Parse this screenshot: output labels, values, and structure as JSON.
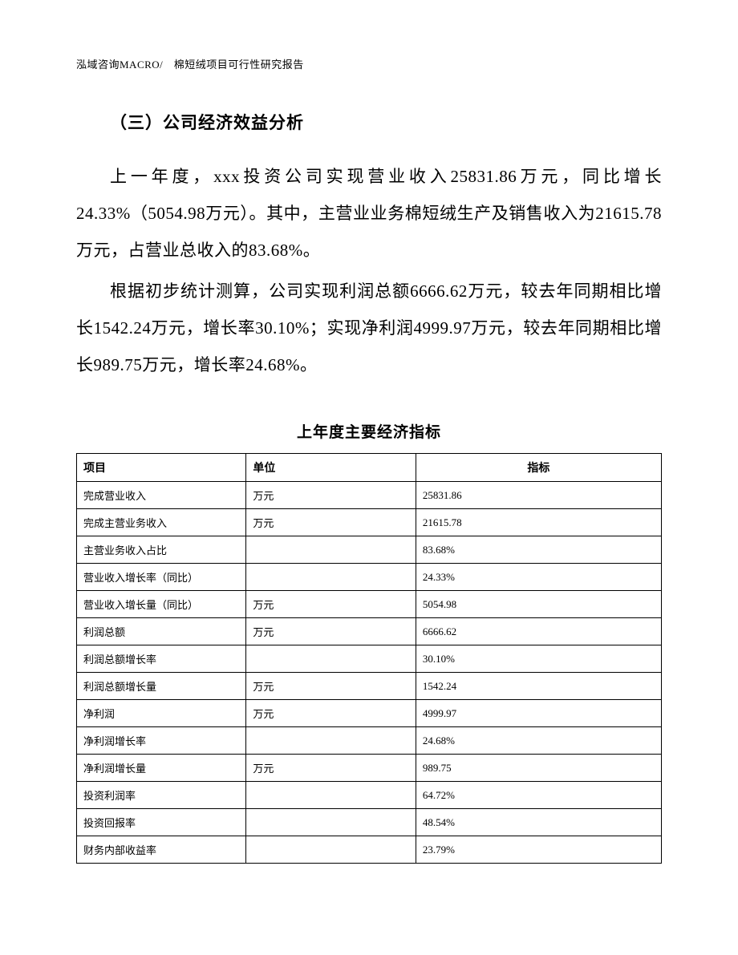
{
  "header": "泓域咨询MACRO/　棉短绒项目可行性研究报告",
  "section_title": "（三）公司经济效益分析",
  "paragraphs": [
    "上一年度，xxx投资公司实现营业收入25831.86万元，同比增长24.33%（5054.98万元）。其中，主营业业务棉短绒生产及销售收入为21615.78万元，占营业总收入的83.68%。",
    "根据初步统计测算，公司实现利润总额6666.62万元，较去年同期相比增长1542.24万元，增长率30.10%；实现净利润4999.97万元，较去年同期相比增长989.75万元，增长率24.68%。"
  ],
  "table": {
    "title": "上年度主要经济指标",
    "columns": [
      "项目",
      "单位",
      "指标"
    ],
    "rows": [
      [
        "完成营业收入",
        "万元",
        "25831.86"
      ],
      [
        "完成主营业务收入",
        "万元",
        "21615.78"
      ],
      [
        "主营业务收入占比",
        "",
        "83.68%"
      ],
      [
        "营业收入增长率（同比）",
        "",
        "24.33%"
      ],
      [
        "营业收入增长量（同比）",
        "万元",
        "5054.98"
      ],
      [
        "利润总额",
        "万元",
        "6666.62"
      ],
      [
        "利润总额增长率",
        "",
        "30.10%"
      ],
      [
        "利润总额增长量",
        "万元",
        "1542.24"
      ],
      [
        "净利润",
        "万元",
        "4999.97"
      ],
      [
        "净利润增长率",
        "",
        "24.68%"
      ],
      [
        "净利润增长量",
        "万元",
        "989.75"
      ],
      [
        "投资利润率",
        "",
        "64.72%"
      ],
      [
        "投资回报率",
        "",
        "48.54%"
      ],
      [
        "财务内部收益率",
        "",
        "23.79%"
      ]
    ]
  }
}
